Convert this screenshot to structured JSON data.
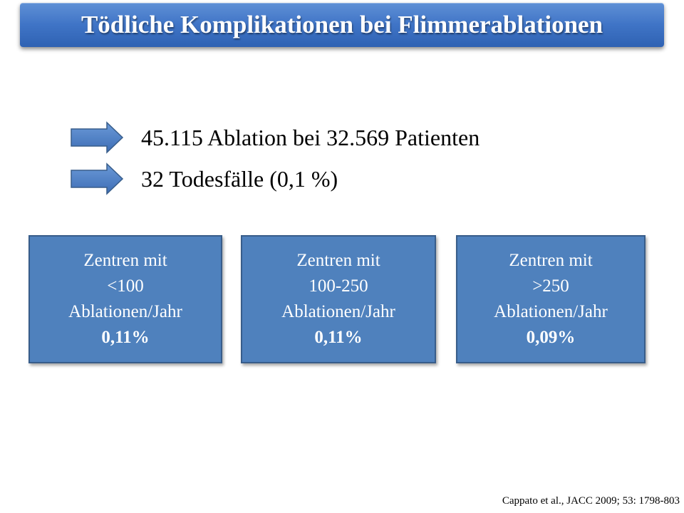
{
  "title": "Tödliche Komplikationen bei Flimmerablationen",
  "bullets": [
    {
      "icon": "right-arrow-icon",
      "text": "45.115 Ablation bei 32.569 Patienten"
    },
    {
      "icon": "right-arrow-icon",
      "text": "32 Todesfälle (0,1 %)"
    }
  ],
  "boxes": [
    {
      "line1": "Zentren mit",
      "line2": "<100",
      "line3": "Ablationen/Jahr",
      "value": "0,11%"
    },
    {
      "line1": "Zentren mit",
      "line2": "100-250",
      "line3": "Ablationen/Jahr",
      "value": "0,11%"
    },
    {
      "line1": "Zentren mit",
      "line2": ">250",
      "line3": "Ablationen/Jahr",
      "value": "0,09%"
    }
  ],
  "citation": "Cappato et al., JACC 2009; 53: 1798-803",
  "colors": {
    "accent": "#4f81bd",
    "title_bar": "#3f74c6",
    "arrow_border": "#385d8a"
  }
}
